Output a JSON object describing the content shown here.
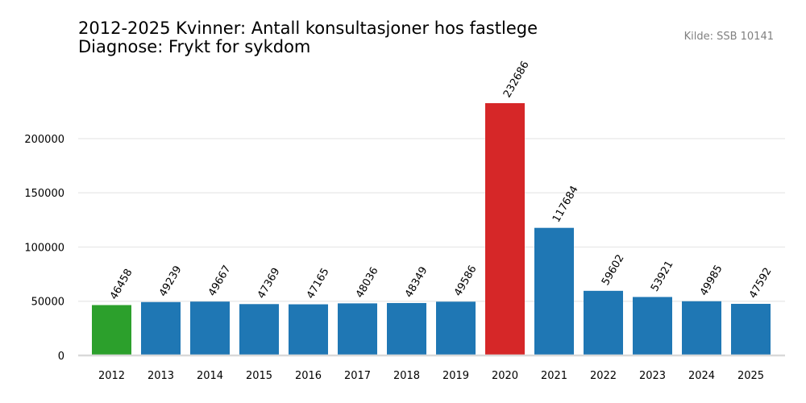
{
  "chart_data": {
    "type": "bar",
    "title_line1": "2012-2025 Kvinner: Antall konsultasjoner hos fastlege",
    "title_line2": "Diagnose: Frykt for sykdom",
    "source": "Kilde: SSB 10141",
    "categories": [
      "2012",
      "2013",
      "2014",
      "2015",
      "2016",
      "2017",
      "2018",
      "2019",
      "2020",
      "2021",
      "2022",
      "2023",
      "2024",
      "2025"
    ],
    "values": [
      46458,
      49239,
      49667,
      47369,
      47165,
      48036,
      48349,
      49586,
      232686,
      117684,
      59602,
      53921,
      49985,
      47592
    ],
    "value_labels": [
      "46458",
      "49239",
      "49667",
      "47369",
      "47165",
      "48036",
      "48349",
      "49586",
      "232686",
      "117684",
      "59602",
      "53921",
      "49985",
      "47592"
    ],
    "colors": [
      "#2ca02c",
      "#1f77b4",
      "#1f77b4",
      "#1f77b4",
      "#1f77b4",
      "#1f77b4",
      "#1f77b4",
      "#1f77b4",
      "#d62728",
      "#1f77b4",
      "#1f77b4",
      "#1f77b4",
      "#1f77b4",
      "#1f77b4"
    ],
    "yticks": [
      0,
      50000,
      100000,
      150000,
      200000
    ],
    "ytick_labels": [
      "0",
      "50000",
      "100000",
      "150000",
      "200000"
    ],
    "ylim": [
      0,
      232686
    ],
    "grid": true,
    "legend": "none"
  }
}
